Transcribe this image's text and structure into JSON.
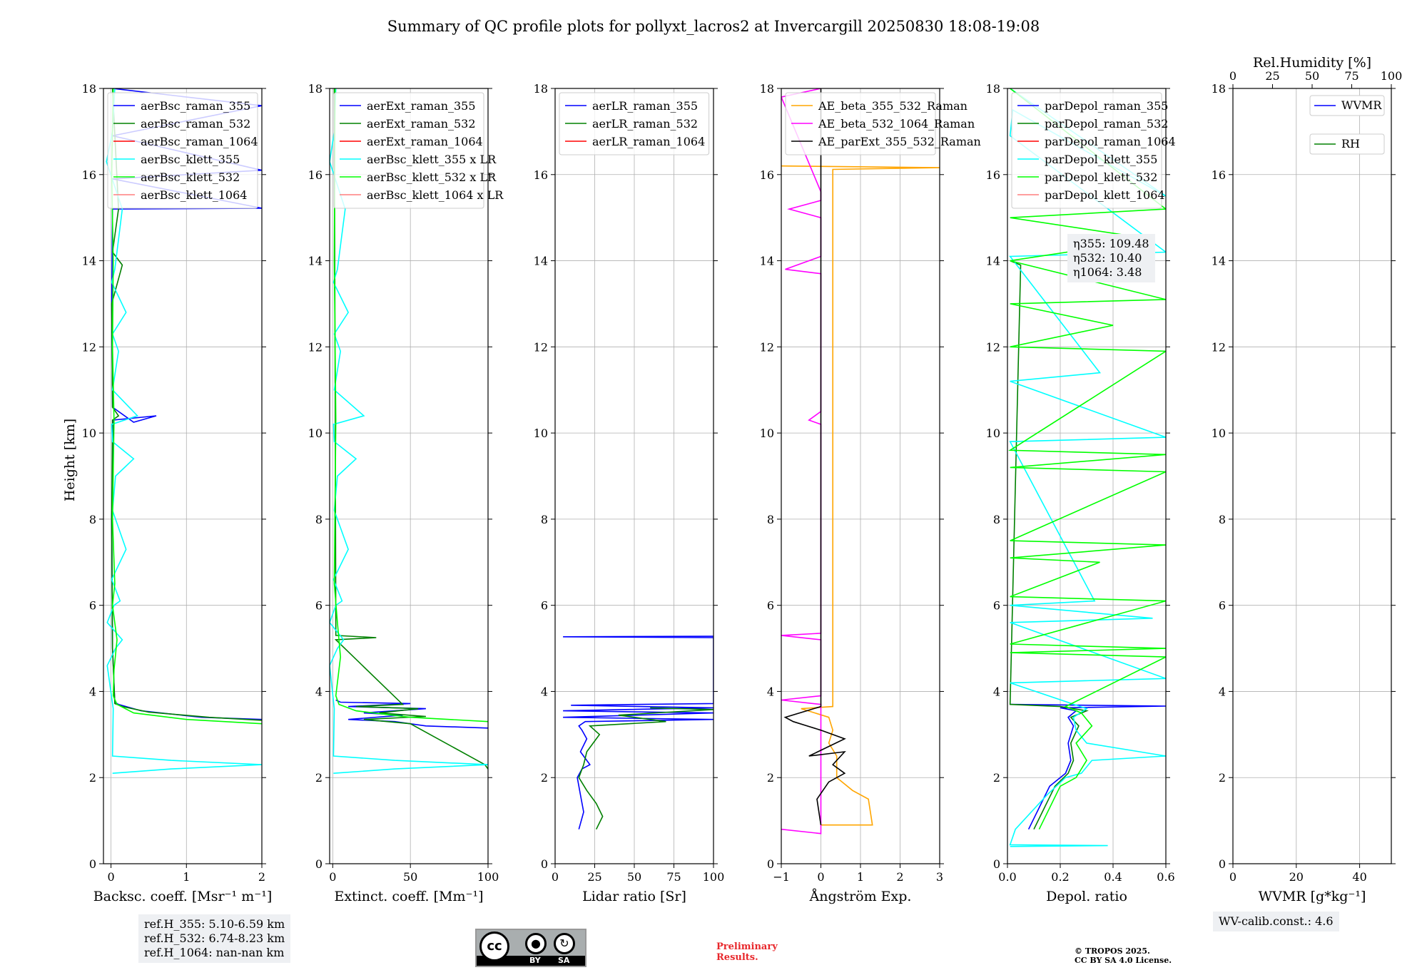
{
  "title": "Summary of QC profile plots for pollyxt_lacros2 at Invercargill 20250830 18:08-19:08",
  "shared_ylabel": "Height [km]",
  "ref_heights": [
    "ref.H_355: 5.10-6.59 km",
    "ref.H_532: 6.74-8.23 km",
    "ref.H_1064: nan-nan km"
  ],
  "eta": [
    "η355: 109.48",
    "η532: 10.40",
    "η1064: 3.48"
  ],
  "wv_calib": "WV-calib.const.: 4.6",
  "cc_license": {
    "by": "BY",
    "sa": "SA"
  },
  "preliminary": [
    "Preliminary",
    "Results."
  ],
  "copyright": [
    "© TROPOS 2025.",
    "CC BY SA 4.0 License."
  ],
  "chart_data": [
    {
      "type": "line",
      "xlabel": "Backsc. coeff. [Msr⁻¹ m⁻¹]",
      "ylabel": "Height [km]",
      "xlim": [
        -0.1,
        2
      ],
      "ylim": [
        0,
        18
      ],
      "xticks": [
        0,
        1,
        2
      ],
      "xticklabels": [
        "0",
        "1",
        "2"
      ],
      "yticks": [
        0,
        2,
        4,
        6,
        8,
        10,
        12,
        14,
        16,
        18
      ],
      "grid": true,
      "legend": "top-left",
      "series": [
        {
          "name": "aerBsc_raman_355",
          "color": "#0000ff",
          "x": [
            2,
            1.2,
            0.4,
            0.1,
            0.05,
            0.02,
            0.01,
            0.03,
            0.6,
            0.3,
            0.02,
            0.01,
            0.02,
            2,
            0.02,
            2,
            0.02,
            2,
            0.02
          ],
          "y": [
            3.35,
            3.4,
            3.55,
            3.7,
            3.75,
            5,
            8,
            10.3,
            10.4,
            10.25,
            10.6,
            13,
            15.2,
            15.22,
            15.9,
            16.1,
            16.9,
            17.6,
            18
          ]
        },
        {
          "name": "aerBsc_raman_532",
          "color": "#008000",
          "x": [
            2,
            1.3,
            0.5,
            0.15,
            0.05,
            0.02,
            0.01,
            0.02,
            0.1,
            0.02,
            0.01,
            0.15,
            0.02,
            0.1,
            0.02
          ],
          "y": [
            3.33,
            3.4,
            3.52,
            3.65,
            3.72,
            5,
            8,
            10.3,
            10.4,
            10.6,
            13,
            13.9,
            14.2,
            15.2,
            18
          ]
        },
        {
          "name": "aerBsc_raman_1064",
          "color": "#ff0000",
          "x": [],
          "y": []
        },
        {
          "name": "aerBsc_klett_355",
          "color": "#00ffff",
          "x": [
            0.02,
            0.8,
            2,
            0.8,
            0.02,
            0.03,
            -0.05,
            0.06,
            0.15,
            -0.05,
            0.04,
            0.12,
            0.01,
            0.2,
            0.02,
            0.06,
            0.3,
            0.02,
            0.01,
            0.35,
            0.02,
            0.1,
            0.02,
            0.2,
            0.01,
            0.05,
            0.15,
            -0.06,
            0.02,
            0.05
          ],
          "y": [
            2.1,
            2.2,
            2.3,
            2.4,
            2.5,
            3.6,
            4.6,
            5,
            5.2,
            5.6,
            6,
            6.1,
            6.6,
            7.3,
            8.2,
            9,
            9.4,
            9.8,
            10.2,
            10.4,
            11,
            11.9,
            12.3,
            12.8,
            13.5,
            13.8,
            15.2,
            16.3,
            17,
            18
          ]
        },
        {
          "name": "aerBsc_klett_532",
          "color": "#00ff00",
          "x": [
            2,
            1.0,
            0.3,
            0.08,
            0.03,
            0.04,
            0.08,
            0.02,
            0.05,
            0.02,
            0.04,
            0.02,
            0.03,
            0.01,
            0.03
          ],
          "y": [
            3.25,
            3.35,
            3.5,
            3.7,
            3.9,
            4.5,
            5.2,
            6,
            6.5,
            8,
            10.3,
            12,
            14,
            16,
            18
          ]
        },
        {
          "name": "aerBsc_klett_1064",
          "color": "#ff7f7f",
          "x": [],
          "y": []
        }
      ]
    },
    {
      "type": "line",
      "xlabel": "Extinct. coeff. [Mm⁻¹]",
      "xlim": [
        -2,
        100
      ],
      "ylim": [
        0,
        18
      ],
      "xticks": [
        0,
        50,
        100
      ],
      "xticklabels": [
        "0",
        "50",
        "100"
      ],
      "yticks": [
        0,
        2,
        4,
        6,
        8,
        10,
        12,
        14,
        16,
        18
      ],
      "grid": true,
      "legend": "top-left",
      "series": [
        {
          "name": "aerExt_raman_355",
          "color": "#0000ff",
          "x": [
            100,
            60,
            40,
            10,
            45,
            20,
            60,
            10,
            50,
            5,
            2
          ],
          "y": [
            3.15,
            3.2,
            3.3,
            3.35,
            3.45,
            3.5,
            3.6,
            3.65,
            3.72,
            3.75,
            3.8
          ]
        },
        {
          "name": "aerExt_raman_532",
          "color": "#008000",
          "x": [
            100,
            98,
            50,
            20,
            60,
            30,
            55,
            15,
            45,
            2,
            28,
            2,
            1
          ],
          "y": [
            2.2,
            2.3,
            3.25,
            3.35,
            3.42,
            3.5,
            3.6,
            3.65,
            3.7,
            5.2,
            5.25,
            5.3,
            18
          ]
        },
        {
          "name": "aerExt_raman_1064",
          "color": "#ff0000",
          "x": [],
          "y": []
        },
        {
          "name": "aerBsc_klett_355 x LR",
          "color": "#00ffff",
          "x": [
            0.5,
            40,
            100,
            40,
            0.5,
            1,
            -2,
            3,
            7,
            -2,
            2,
            6,
            0.5,
            10,
            1,
            3,
            15,
            1,
            0.5,
            20,
            1,
            5,
            1,
            10,
            0.5,
            3,
            8,
            -2,
            1,
            2
          ],
          "y": [
            2.1,
            2.2,
            2.3,
            2.4,
            2.5,
            3.6,
            4.6,
            5,
            5.2,
            5.6,
            6,
            6.1,
            6.6,
            7.3,
            8.2,
            9,
            9.4,
            9.8,
            10.2,
            10.4,
            11,
            11.9,
            12.3,
            12.8,
            13.5,
            13.8,
            15.2,
            16.3,
            17,
            18
          ]
        },
        {
          "name": "aerBsc_klett_532 x LR",
          "color": "#00ff00",
          "x": [
            100,
            50,
            15,
            4,
            2,
            5,
            3,
            1,
            2,
            1,
            1.5
          ],
          "y": [
            3.3,
            3.4,
            3.55,
            3.7,
            3.9,
            4.8,
            5.6,
            6.5,
            10.3,
            14,
            18
          ]
        },
        {
          "name": "aerBsc_klett_1064 x LR",
          "color": "#ff7f7f",
          "x": [],
          "y": []
        }
      ]
    },
    {
      "type": "line",
      "xlabel": "Lidar ratio [Sr]",
      "xlim": [
        0,
        100
      ],
      "ylim": [
        0,
        18
      ],
      "xticks": [
        0,
        25,
        50,
        75,
        100
      ],
      "xticklabels": [
        "0",
        "25",
        "50",
        "75",
        "100"
      ],
      "yticks": [
        0,
        2,
        4,
        6,
        8,
        10,
        12,
        14,
        16,
        18
      ],
      "grid": true,
      "legend": "top-left",
      "series": [
        {
          "name": "aerLR_raman_355",
          "color": "#0000ff",
          "x": [
            15,
            18,
            16,
            14,
            17,
            22,
            16,
            20,
            17,
            15,
            19,
            100,
            5,
            100,
            5,
            100,
            10,
            100,
            100,
            5,
            100
          ],
          "y": [
            0.8,
            1.2,
            1.6,
            2,
            2.2,
            2.3,
            2.6,
            2.9,
            3.1,
            3.2,
            3.3,
            3.35,
            3.4,
            3.5,
            3.55,
            3.62,
            3.68,
            3.72,
            5.25,
            5.27,
            5.28
          ]
        },
        {
          "name": "aerLR_raman_532",
          "color": "#008000",
          "x": [
            26,
            30,
            26,
            20,
            15,
            18,
            20,
            28,
            22,
            70,
            40,
            100,
            60
          ],
          "y": [
            0.8,
            1.1,
            1.4,
            1.7,
            2,
            2.3,
            2.6,
            3.0,
            3.2,
            3.3,
            3.45,
            3.58,
            3.62
          ]
        },
        {
          "name": "aerLR_raman_1064",
          "color": "#ff0000",
          "x": [],
          "y": []
        }
      ]
    },
    {
      "type": "line",
      "xlabel": "Ångström Exp.",
      "xlim": [
        -1,
        3
      ],
      "ylim": [
        0,
        18
      ],
      "xticks": [
        -1,
        0,
        1,
        2,
        3
      ],
      "xticklabels": [
        "−1",
        "0",
        "1",
        "2",
        "3"
      ],
      "yticks": [
        0,
        2,
        4,
        6,
        8,
        10,
        12,
        14,
        16,
        18
      ],
      "grid": true,
      "legend": "top-left",
      "series": [
        {
          "name": "AE_beta_355_532_Raman",
          "color": "#ffa500",
          "x": [
            0,
            1.3,
            1.2,
            0.8,
            0.4,
            0.4,
            0.2,
            0.3,
            0.2,
            -0.5,
            0.3,
            0.3,
            3,
            -1
          ],
          "y": [
            0.9,
            0.9,
            1.5,
            1.7,
            2.0,
            2.5,
            2.8,
            3.1,
            3.4,
            3.6,
            3.65,
            16.12,
            16.16,
            16.2
          ]
        },
        {
          "name": "AE_beta_532_1064_Raman",
          "color": "#ff00ff",
          "x": [
            -1,
            0,
            0,
            -1,
            0,
            0,
            -1,
            0,
            0,
            -0.3,
            0,
            0,
            -0.9,
            0,
            0,
            -0.8,
            0,
            0,
            -1,
            0,
            0
          ],
          "y": [
            0.8,
            0.7,
            3.7,
            3.8,
            3.9,
            5.2,
            5.3,
            5.35,
            10.2,
            10.3,
            10.5,
            13.7,
            13.8,
            14.1,
            15.0,
            15.2,
            15.4,
            15.6,
            17.8,
            18,
            18
          ]
        },
        {
          "name": "AE_parExt_355_532_Raman",
          "color": "#000000",
          "x": [
            0,
            -0.1,
            0.2,
            0.6,
            0.3,
            0.6,
            -0.3,
            0.6,
            0,
            -0.7,
            -0.9,
            0,
            0
          ],
          "y": [
            0.9,
            1.5,
            1.9,
            2.1,
            2.3,
            2.6,
            2.5,
            2.9,
            3.1,
            3.3,
            3.4,
            3.65,
            18
          ]
        }
      ]
    },
    {
      "type": "line",
      "xlabel": "Depol. ratio",
      "xlim": [
        0,
        0.6
      ],
      "ylim": [
        0,
        18
      ],
      "xticks": [
        0,
        0.2,
        0.4,
        0.6
      ],
      "xticklabels": [
        "0.0",
        "0.2",
        "0.4",
        "0.6"
      ],
      "yticks": [
        0,
        2,
        4,
        6,
        8,
        10,
        12,
        14,
        16,
        18
      ],
      "grid": true,
      "legend": "top-left",
      "series": [
        {
          "name": "parDepol_raman_355",
          "color": "#0000ff",
          "x": [
            0.08,
            0.12,
            0.16,
            0.22,
            0.24,
            0.23,
            0.25,
            0.23,
            0.26,
            0.2,
            0.6,
            0.01
          ],
          "y": [
            0.8,
            1.3,
            1.8,
            2.1,
            2.4,
            2.8,
            3.2,
            3.4,
            3.55,
            3.62,
            3.66,
            3.7
          ]
        },
        {
          "name": "parDepol_raman_532",
          "color": "#008000",
          "x": [
            0.1,
            0.14,
            0.18,
            0.23,
            0.25,
            0.24,
            0.27,
            0.24,
            0.3,
            0.2,
            0.01,
            0.05,
            0.01
          ],
          "y": [
            0.8,
            1.3,
            1.8,
            2.1,
            2.4,
            2.8,
            3.2,
            3.4,
            3.55,
            3.65,
            3.7,
            13.9,
            14.0
          ]
        },
        {
          "name": "parDepol_raman_1064",
          "color": "#ff0000",
          "x": [],
          "y": []
        },
        {
          "name": "parDepol_klett_355",
          "color": "#00ffff",
          "x": [
            0.01,
            0.38,
            0.01,
            0.03,
            0.15,
            0.22,
            0.28,
            0.32,
            0.6,
            0.3,
            0.26,
            0.25,
            0.3,
            0.01,
            0.6,
            0.01,
            0.55,
            0.01,
            0.33,
            0.01,
            0.6,
            0.01,
            0.35,
            0.01,
            0.6,
            0.01,
            0.02,
            0.6,
            0.01
          ],
          "y": [
            0.4,
            0.42,
            0.44,
            0.8,
            1.6,
            2.0,
            2.1,
            2.4,
            2.5,
            2.8,
            3.1,
            3.4,
            3.6,
            4.2,
            4.3,
            5.6,
            5.7,
            6.0,
            6.1,
            9.8,
            9.9,
            11.2,
            11.4,
            14.1,
            14.2,
            16.9,
            17.5,
            15.5,
            18
          ]
        },
        {
          "name": "parDepol_klett_532",
          "color": "#00ff00",
          "x": [
            0.12,
            0.16,
            0.2,
            0.26,
            0.3,
            0.26,
            0.32,
            0.28,
            0.22,
            0.6,
            0.01,
            0.6,
            0.01,
            0.6,
            0.01,
            0.35,
            0.01,
            0.6,
            0.01,
            0.6,
            0.01,
            0.6,
            0.01,
            0.6,
            0.01,
            0.4,
            0.01,
            0.6,
            0.01,
            0.55,
            0.01,
            0.6,
            0.01
          ],
          "y": [
            0.8,
            1.3,
            1.8,
            2.0,
            2.4,
            2.8,
            3.2,
            3.5,
            3.65,
            4.8,
            4.9,
            5.0,
            5.1,
            6.1,
            6.2,
            7.0,
            7.1,
            7.4,
            7.5,
            9.1,
            9.2,
            9.5,
            9.6,
            11.9,
            12.0,
            12.5,
            13.0,
            13.1,
            14.0,
            14.5,
            15.0,
            15.2,
            18
          ]
        },
        {
          "name": "parDepol_klett_1064",
          "color": "#ff7f7f",
          "x": [],
          "y": []
        }
      ]
    },
    {
      "type": "line",
      "xlabel": "WVMR [g*kg⁻¹]",
      "x2label": "Rel.Humidity [%]",
      "xlim": [
        0,
        50
      ],
      "ylim": [
        0,
        18
      ],
      "xticks": [
        0,
        20,
        40
      ],
      "xticklabels": [
        "0",
        "20",
        "40"
      ],
      "x2lim": [
        0,
        100
      ],
      "x2ticks": [
        0,
        25,
        50,
        75,
        100
      ],
      "x2ticklabels": [
        "0",
        "25",
        "50",
        "75",
        "100"
      ],
      "yticks": [
        0,
        2,
        4,
        6,
        8,
        10,
        12,
        14,
        16,
        18
      ],
      "grid": true,
      "legend": "top-right",
      "series": [
        {
          "name": "WVMR",
          "color": "#0000ff",
          "x": [],
          "y": []
        },
        {
          "name": "RH",
          "color": "#008000",
          "x": [],
          "y": []
        }
      ]
    }
  ]
}
